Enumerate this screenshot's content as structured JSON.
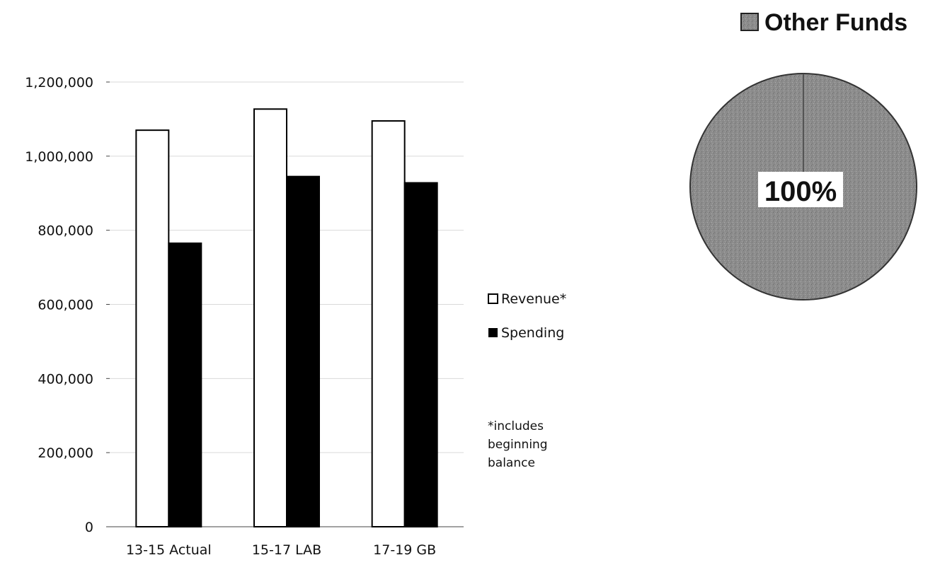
{
  "chart_data": [
    {
      "type": "bar",
      "categories": [
        "13-15 Actual",
        "15-17 LAB",
        "17-19 GB"
      ],
      "series": [
        {
          "name": "Revenue*",
          "values": [
            1070000,
            1127000,
            1095000
          ],
          "color": "#ffffff"
        },
        {
          "name": "Spending",
          "values": [
            765000,
            945000,
            928000
          ],
          "color": "#000000"
        }
      ],
      "ylim": [
        0,
        1200000
      ],
      "yticks": [
        "0",
        "200,000",
        "400,000",
        "600,000",
        "800,000",
        "1,000,000",
        "1,200,000"
      ],
      "grid": true,
      "legend_position": "right",
      "legend": {
        "revenue_label": "Revenue*",
        "spending_label": "Spending"
      },
      "annotation": {
        "line1": "*includes",
        "line2": "beginning",
        "line3": "balance"
      }
    },
    {
      "type": "pie",
      "legend_title": "Other Funds",
      "slices": [
        {
          "name": "Other Funds",
          "value": 100,
          "label": "100%",
          "color": "#8c8c8c"
        }
      ]
    }
  ]
}
